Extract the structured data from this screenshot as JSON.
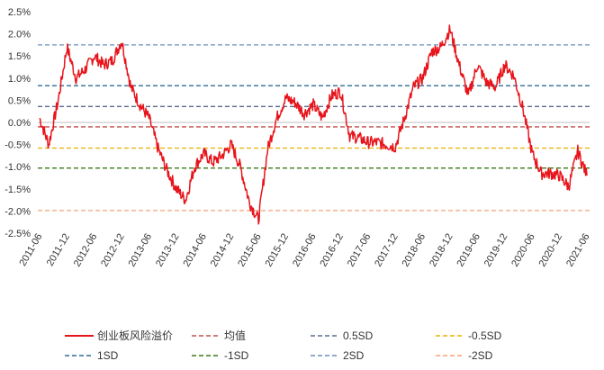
{
  "chart_data": {
    "type": "line",
    "title": "",
    "xlabel": "",
    "ylabel": "",
    "ylim": [
      -2.5,
      2.5
    ],
    "yticks": [
      2.5,
      2.0,
      1.5,
      1.0,
      0.5,
      0.0,
      -0.5,
      -1.0,
      -1.5,
      -2.0,
      -2.5
    ],
    "ytick_labels": [
      "2.5%",
      "2.0%",
      "1.5%",
      "1.0%",
      "0.5%",
      "0.0%",
      "-0.5%",
      "-1.0%",
      "-1.5%",
      "-2.0%",
      "-2.5%"
    ],
    "xticks": [
      "2011-06",
      "2011-12",
      "2012-06",
      "2012-12",
      "2013-06",
      "2013-12",
      "2014-06",
      "2014-12",
      "2015-06",
      "2015-12",
      "2016-06",
      "2016-12",
      "2017-06",
      "2017-12",
      "2018-06",
      "2018-12",
      "2019-06",
      "2019-12",
      "2020-06",
      "2020-12",
      "2021-06"
    ],
    "grid": false,
    "legend_position": "bottom",
    "series": [
      {
        "name": "创业板风险溢价",
        "color": "#e8141b",
        "x": [
          "2011-06",
          "2011-08",
          "2011-10",
          "2011-12",
          "2012-02",
          "2012-04",
          "2012-06",
          "2012-08",
          "2012-10",
          "2012-12",
          "2013-02",
          "2013-04",
          "2013-06",
          "2013-08",
          "2013-10",
          "2013-12",
          "2014-02",
          "2014-04",
          "2014-06",
          "2014-08",
          "2014-10",
          "2014-12",
          "2015-02",
          "2015-04",
          "2015-06",
          "2015-08",
          "2015-10",
          "2015-12",
          "2016-02",
          "2016-04",
          "2016-06",
          "2016-08",
          "2016-10",
          "2016-12",
          "2017-02",
          "2017-04",
          "2017-06",
          "2017-08",
          "2017-10",
          "2017-12",
          "2018-02",
          "2018-04",
          "2018-06",
          "2018-08",
          "2018-10",
          "2018-12",
          "2019-02",
          "2019-04",
          "2019-06",
          "2019-08",
          "2019-10",
          "2019-12",
          "2020-02",
          "2020-04",
          "2020-06",
          "2020-08",
          "2020-10",
          "2020-12",
          "2021-02",
          "2021-04",
          "2021-06"
        ],
        "values": [
          0.1,
          -0.5,
          0.45,
          1.7,
          1.0,
          1.2,
          1.5,
          1.3,
          1.4,
          1.85,
          0.8,
          0.4,
          0.1,
          -0.6,
          -1.1,
          -1.5,
          -1.75,
          -1.0,
          -0.7,
          -0.9,
          -0.75,
          -0.5,
          -1.0,
          -1.8,
          -2.2,
          -0.6,
          0.1,
          0.55,
          0.45,
          0.2,
          0.4,
          0.1,
          0.6,
          0.7,
          -0.3,
          -0.35,
          -0.45,
          -0.45,
          -0.5,
          -0.55,
          0.1,
          0.8,
          1.0,
          1.6,
          1.7,
          2.1,
          1.3,
          0.6,
          1.3,
          0.9,
          0.8,
          1.3,
          1.05,
          0.3,
          -0.7,
          -1.15,
          -1.15,
          -1.2,
          -1.45,
          -0.65,
          -1.2
        ]
      },
      {
        "name": "均值",
        "color": "#c0504d",
        "value": -0.1,
        "dash": "5,3"
      },
      {
        "name": "0.5SD",
        "color": "#5b6b8c",
        "value": 0.36,
        "dash": "5,3"
      },
      {
        "name": "-0.5SD",
        "color": "#e8b000",
        "value": -0.58,
        "dash": "5,3"
      },
      {
        "name": "1SD",
        "color": "#2e6d96",
        "value": 0.83,
        "dash": "5,3"
      },
      {
        "name": "-1SD",
        "color": "#3a7a1a",
        "value": -1.03,
        "dash": "5,3"
      },
      {
        "name": "2SD",
        "color": "#6b8fbf",
        "value": 1.75,
        "dash": "5,3"
      },
      {
        "name": "-2SD",
        "color": "#f2a47a",
        "value": -1.99,
        "dash": "5,3"
      }
    ]
  }
}
